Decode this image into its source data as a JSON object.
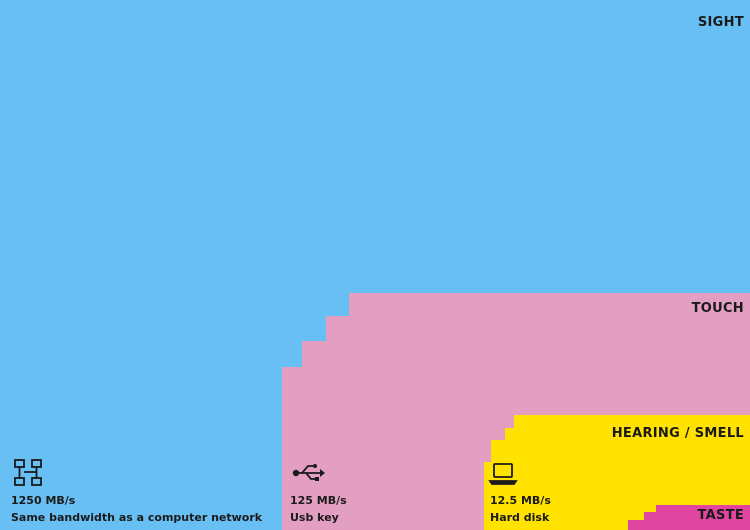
{
  "chart_data": {
    "type": "area",
    "title": "",
    "units": "MB/s",
    "series": [
      {
        "name": "SIGHT",
        "color": "#67bff4",
        "value": 1250,
        "rate_label": "1250 MB/s",
        "description": "Same bandwidth as a computer network",
        "icon": "network-icon"
      },
      {
        "name": "TOUCH",
        "color": "#e39fc2",
        "value": 125,
        "rate_label": "125 MB/s",
        "description": "Usb key",
        "icon": "usb-icon"
      },
      {
        "name": "HEARING / SMELL",
        "color": "#ffe200",
        "value": 12.5,
        "rate_label": "12.5 MB/s",
        "description": "Hard disk",
        "icon": "laptop-icon"
      },
      {
        "name": "TASTE",
        "color": "#e0469f",
        "value": 1
      }
    ]
  }
}
